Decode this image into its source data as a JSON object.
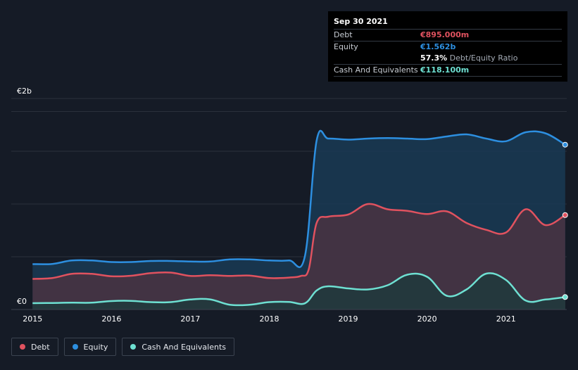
{
  "chart_data": {
    "type": "area",
    "y_axis": {
      "min": 0,
      "max": 2000,
      "top_label": "€2b",
      "bottom_label": "€0"
    },
    "x_axis": {
      "min": 2014.73,
      "max": 2021.77,
      "ticks": [
        "2015",
        "2016",
        "2017",
        "2018",
        "2019",
        "2020",
        "2021"
      ]
    },
    "series": [
      {
        "name": "Debt",
        "color": "#e0525f",
        "fill": "#4a3242",
        "points": [
          [
            2015,
            290
          ],
          [
            2015.25,
            298
          ],
          [
            2015.5,
            338
          ],
          [
            2015.75,
            338
          ],
          [
            2016,
            315
          ],
          [
            2016.25,
            320
          ],
          [
            2016.5,
            345
          ],
          [
            2016.75,
            350
          ],
          [
            2017,
            318
          ],
          [
            2017.25,
            325
          ],
          [
            2017.5,
            318
          ],
          [
            2017.75,
            322
          ],
          [
            2018,
            298
          ],
          [
            2018.25,
            303
          ],
          [
            2018.4,
            318
          ],
          [
            2018.5,
            380
          ],
          [
            2018.6,
            820
          ],
          [
            2018.75,
            880
          ],
          [
            2019,
            900
          ],
          [
            2019.25,
            1000
          ],
          [
            2019.5,
            950
          ],
          [
            2019.75,
            935
          ],
          [
            2020,
            905
          ],
          [
            2020.25,
            930
          ],
          [
            2020.5,
            820
          ],
          [
            2020.75,
            755
          ],
          [
            2021,
            730
          ],
          [
            2021.25,
            950
          ],
          [
            2021.5,
            800
          ],
          [
            2021.75,
            895
          ]
        ]
      },
      {
        "name": "Equity",
        "color": "#2d8fe0",
        "fill": "#193a55",
        "points": [
          [
            2015,
            430
          ],
          [
            2015.25,
            432
          ],
          [
            2015.5,
            465
          ],
          [
            2015.75,
            465
          ],
          [
            2016,
            450
          ],
          [
            2016.25,
            450
          ],
          [
            2016.5,
            460
          ],
          [
            2016.75,
            460
          ],
          [
            2017,
            455
          ],
          [
            2017.25,
            455
          ],
          [
            2017.5,
            475
          ],
          [
            2017.75,
            475
          ],
          [
            2018,
            465
          ],
          [
            2018.25,
            465
          ],
          [
            2018.45,
            500
          ],
          [
            2018.6,
            1600
          ],
          [
            2018.75,
            1620
          ],
          [
            2019,
            1610
          ],
          [
            2019.25,
            1620
          ],
          [
            2019.5,
            1625
          ],
          [
            2019.75,
            1620
          ],
          [
            2020,
            1615
          ],
          [
            2020.25,
            1640
          ],
          [
            2020.5,
            1660
          ],
          [
            2020.75,
            1620
          ],
          [
            2021,
            1595
          ],
          [
            2021.25,
            1680
          ],
          [
            2021.5,
            1670
          ],
          [
            2021.75,
            1562
          ]
        ]
      },
      {
        "name": "Cash And Equivalents",
        "color": "#6ee0d2",
        "fill": "#1f3a3c",
        "points": [
          [
            2015,
            60
          ],
          [
            2015.25,
            62
          ],
          [
            2015.5,
            65
          ],
          [
            2015.75,
            65
          ],
          [
            2016,
            80
          ],
          [
            2016.25,
            82
          ],
          [
            2016.5,
            70
          ],
          [
            2016.75,
            70
          ],
          [
            2017,
            95
          ],
          [
            2017.25,
            96
          ],
          [
            2017.5,
            45
          ],
          [
            2017.75,
            45
          ],
          [
            2018,
            70
          ],
          [
            2018.25,
            72
          ],
          [
            2018.45,
            58
          ],
          [
            2018.6,
            180
          ],
          [
            2018.75,
            220
          ],
          [
            2019,
            200
          ],
          [
            2019.25,
            190
          ],
          [
            2019.5,
            230
          ],
          [
            2019.75,
            330
          ],
          [
            2020,
            310
          ],
          [
            2020.25,
            130
          ],
          [
            2020.5,
            190
          ],
          [
            2020.75,
            340
          ],
          [
            2021,
            280
          ],
          [
            2021.25,
            85
          ],
          [
            2021.5,
            95
          ],
          [
            2021.75,
            118.1
          ]
        ]
      }
    ]
  },
  "tooltip": {
    "date": "Sep 30 2021",
    "debt_label": "Debt",
    "debt_value": "€895.000m",
    "debt_color": "#e0525f",
    "equity_label": "Equity",
    "equity_value": "€1.562b",
    "equity_color": "#2d8fe0",
    "ratio_value": "57.3%",
    "ratio_label": "Debt/Equity Ratio",
    "cash_label": "Cash And Equivalents",
    "cash_value": "€118.100m",
    "cash_color": "#6ee0d2"
  },
  "legend": [
    {
      "label": "Debt",
      "color": "#e0525f"
    },
    {
      "label": "Equity",
      "color": "#2d8fe0"
    },
    {
      "label": "Cash And Equivalents",
      "color": "#6ee0d2"
    }
  ]
}
